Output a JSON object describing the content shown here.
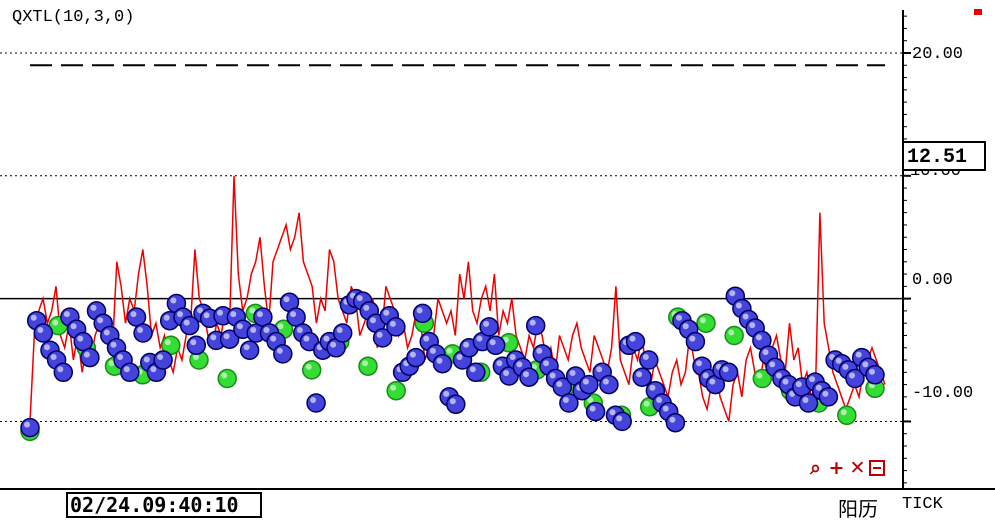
{
  "chart_title": "QXTL(10,3,0)",
  "current_value_label": "12.51",
  "cursor_time": "02/24.09:40:10",
  "calendar_label": "阳历",
  "period_label": "TICK",
  "toolbar_icons": [
    "zoom-icon",
    "plus-icon",
    "close-icon",
    "window-icon"
  ],
  "colors": {
    "line": "#ee0000",
    "dots_blue": "#4444dd",
    "dots_green": "#33dd33",
    "zero_line": "#000000",
    "grid": "#000000"
  },
  "chart_data": {
    "type": "line",
    "ylim": [
      -15.5,
      23.5
    ],
    "yticks": [
      "20.00",
      "10.00",
      "0.00",
      "-10.00"
    ],
    "ytick_values": [
      20,
      10,
      0,
      -10
    ],
    "grid": "dotted horizontal",
    "dashed_reference": 19.0,
    "series": [
      {
        "values": [
          -10,
          -3,
          -1,
          0,
          -2,
          -1,
          1,
          -3,
          -4,
          -2,
          -5,
          -3,
          -6,
          -4,
          -5,
          -3,
          -2,
          -1,
          -3,
          -4,
          3,
          1,
          -2,
          0,
          -1,
          2,
          4,
          1,
          -3,
          -2,
          -4,
          -3,
          -5,
          -6,
          -4,
          -5,
          -3,
          -2,
          4,
          0,
          -1,
          -3,
          -4,
          -2,
          -3,
          -1,
          -2,
          10,
          2,
          -1,
          0,
          2,
          3,
          5,
          1,
          -2,
          3,
          4,
          5,
          6,
          4,
          5,
          7,
          3,
          2,
          1,
          -2,
          0,
          -1,
          4,
          3,
          0,
          -1,
          -2,
          1,
          0,
          -3,
          -2,
          -1,
          0,
          -4,
          -3,
          1,
          0,
          -1,
          -3,
          -2,
          -4,
          -3,
          -1,
          -2,
          -5,
          -4,
          -3,
          0,
          -1,
          -2,
          -1,
          -3,
          2,
          0,
          3,
          -1,
          -2,
          0,
          1,
          -1,
          2,
          -3,
          -1,
          -2,
          0,
          -3,
          -4,
          -5,
          -3,
          -4,
          -2,
          -3,
          -5,
          -4,
          -6,
          -3,
          -4,
          -5,
          -3,
          -2,
          -4,
          -5,
          -6,
          -3,
          -4,
          -5,
          -6,
          -4,
          1,
          -5,
          -6,
          -7,
          -4,
          -5,
          -3,
          -6,
          -7,
          -5,
          -6,
          -7,
          -8,
          -6,
          -5,
          -7,
          -6,
          -3,
          -5,
          -6,
          -8,
          -9,
          -7,
          -6,
          -8,
          -9,
          -10,
          -7,
          -6,
          -8,
          -5,
          -4,
          -6,
          -7,
          -5,
          -6,
          -4,
          -3,
          -5,
          -6,
          -2,
          -5,
          -4,
          -7,
          -6,
          -8,
          -7,
          7,
          -2,
          -4,
          -6,
          -7,
          -8,
          -9,
          -8,
          -7,
          -8,
          -6,
          -5,
          -4,
          -5,
          -6,
          -7
        ]
      }
    ],
    "markers_blue": [
      -10.5,
      -1.8,
      -2.8,
      -4.2,
      -5.0,
      -6.0,
      -1.5,
      -2.5,
      -3.5,
      -4.8,
      -1.0,
      -2.0,
      -3.0,
      -4.0,
      -5.0,
      -6.0,
      -1.5,
      -2.8,
      -5.2,
      -6.0,
      -5.0,
      -1.8,
      -0.4,
      -1.5,
      -2.2,
      -3.8,
      -1.2,
      -1.6,
      -3.4,
      -1.4,
      -3.3,
      -1.5,
      -2.5,
      -4.2,
      -2.8,
      -1.5,
      -2.8,
      -3.5,
      -4.5,
      -0.3,
      -1.5,
      -2.8,
      -3.5,
      -8.5,
      -4.2,
      -3.5,
      -4.0,
      -2.8,
      -0.5,
      0.0,
      -0.2,
      -1.0,
      -2.0,
      -3.2,
      -1.4,
      -2.3,
      -6.0,
      -5.5,
      -4.8,
      -1.2,
      -3.5,
      -4.5,
      -5.3,
      -8.0,
      -8.6,
      -5.0,
      -4.0,
      -6.0,
      -3.5,
      -2.3,
      -3.8,
      -5.5,
      -6.3,
      -5.0,
      -5.6,
      -6.4,
      -2.2,
      -4.5,
      -5.5,
      -6.5,
      -7.2,
      -8.5,
      -6.3,
      -7.5,
      -7.0,
      -9.2,
      -6.0,
      -7.0,
      -9.5,
      -10.0,
      -3.8,
      -3.5,
      -6.4,
      -5.0,
      -7.5,
      -8.5,
      -9.2,
      -10.1,
      -1.8,
      -2.5,
      -3.5,
      -5.5,
      -6.5,
      -7.0,
      -5.8,
      -6.0,
      0.2,
      -0.8,
      -1.7,
      -2.4,
      -3.4,
      -4.6,
      -5.6,
      -6.5,
      -7.0,
      -8.0,
      -7.2,
      -8.5,
      -6.8,
      -7.5,
      -8.0,
      -5.0,
      -5.3,
      -5.8,
      -6.5,
      -4.8,
      -5.6,
      -6.2
    ],
    "markers_green": [
      -10.8,
      -2.2,
      -4.0,
      -5.5,
      -6.2,
      -3.8,
      -5.0,
      -6.5,
      -1.2,
      -2.5,
      -5.8,
      -3.5,
      -5.5,
      -7.5,
      -2.0,
      -4.5,
      -6.0,
      -3.6,
      -5.8,
      -7.2,
      -8.5,
      -9.5,
      -8.8,
      -1.5,
      -2.0,
      -3.0,
      -6.5,
      -7.5,
      -8.5,
      -9.5,
      -7.3
    ]
  }
}
